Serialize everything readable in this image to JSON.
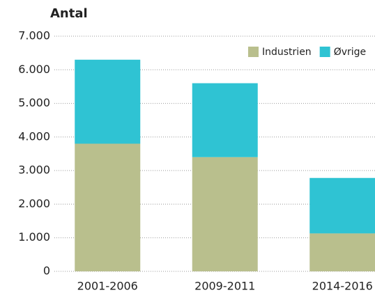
{
  "chart_data": {
    "type": "stacked-bar",
    "title": "Antal",
    "categories": [
      "2001-2006",
      "2009-2011",
      "2014-2016"
    ],
    "series": [
      {
        "name": "Industrien",
        "color": "#b9bf8d",
        "values": [
          3800,
          3400,
          1130
        ]
      },
      {
        "name": "Øvrige",
        "color": "#2fc3d3",
        "values": [
          2500,
          2200,
          1650
        ]
      }
    ],
    "ylim": [
      0,
      7000
    ],
    "yticks": [
      0,
      {
        "value": 1000,
        "label": "1.000"
      },
      {
        "value": 2000,
        "label": "2.000"
      },
      {
        "value": 3000,
        "label": "3.000"
      },
      {
        "value": 4000,
        "label": "4.000"
      },
      {
        "value": 5000,
        "label": "5.000"
      },
      {
        "value": 6000,
        "label": "6.000"
      },
      {
        "value": 7000,
        "label": "7.000"
      }
    ],
    "grid": true,
    "legend": "top-right"
  }
}
